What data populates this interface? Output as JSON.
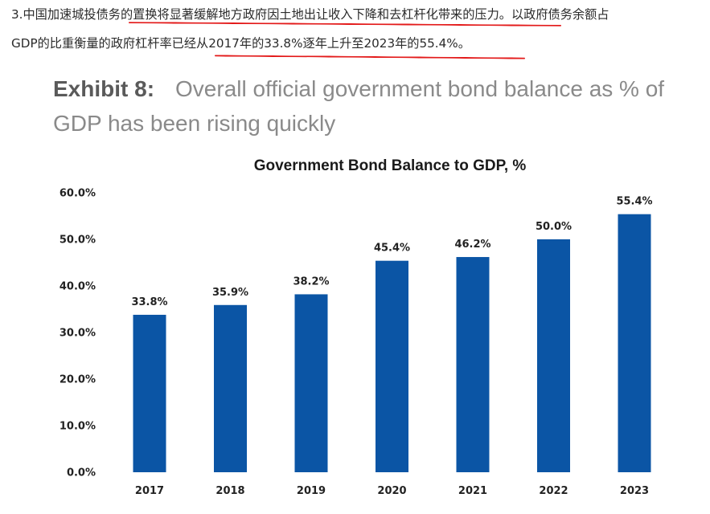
{
  "article": {
    "line1": "3.中国加速城投债务的置换将显著缓解地方政府因土地出让收入下降和去杠杆化带来的压力。以政府债务余额占",
    "line2": "GDP的比重衡量的政府杠杆率已经从2017年的33.8%逐年上升至2023年的55.4%。",
    "annotation_color": "#e31a1a"
  },
  "exhibit": {
    "label": "Exhibit 8:",
    "title": "Overall official government bond balance as % of GDP has been rising quickly"
  },
  "chart_data": {
    "type": "bar",
    "title": "Government Bond Balance to GDP, %",
    "xlabel": "",
    "ylabel": "",
    "categories": [
      "2017",
      "2018",
      "2019",
      "2020",
      "2021",
      "2022",
      "2023"
    ],
    "values": [
      33.8,
      35.9,
      38.2,
      45.4,
      46.2,
      50.0,
      55.4
    ],
    "data_labels": [
      "33.8%",
      "35.9%",
      "38.2%",
      "45.4%",
      "46.2%",
      "50.0%",
      "55.4%"
    ],
    "ylim": [
      0,
      60
    ],
    "yticks": [
      0,
      10,
      20,
      30,
      40,
      50,
      60
    ],
    "ytick_labels": [
      "0.0%",
      "10.0%",
      "20.0%",
      "30.0%",
      "40.0%",
      "50.0%",
      "60.0%"
    ],
    "bar_color": "#0b55a5",
    "grid": false,
    "legend": "none"
  }
}
